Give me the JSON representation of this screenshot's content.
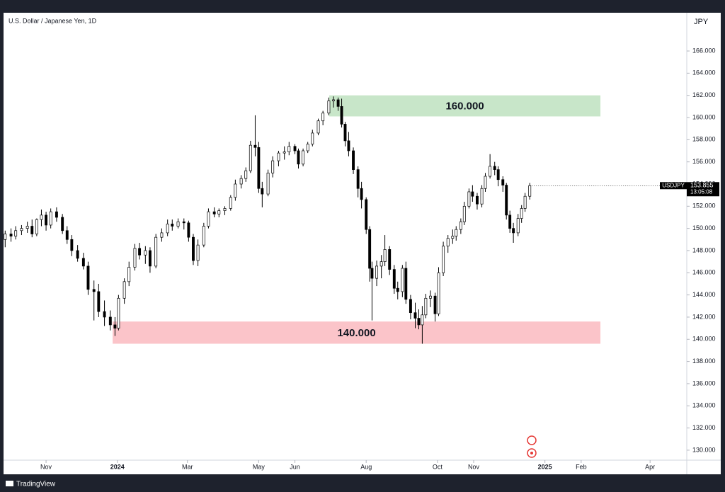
{
  "chart_data": {
    "type": "candlestick",
    "title": "U.S. Dollar / Japanese Yen, 1D",
    "currency": "JPY",
    "symbol": "USDJPY",
    "last_price": 153.855,
    "countdown": "13:05:08",
    "brand": "TradingView",
    "xlim": [
      -36.4,
      548.4
    ],
    "ylim": [
      129.1,
      169.45
    ],
    "xticks": [
      {
        "value": 0,
        "label": "Nov"
      },
      {
        "value": 61,
        "label": "2024"
      },
      {
        "value": 121,
        "label": "Mar"
      },
      {
        "value": 182,
        "label": "May"
      },
      {
        "value": 213,
        "label": "Jun"
      },
      {
        "value": 274,
        "label": "Aug"
      },
      {
        "value": 335,
        "label": "Oct"
      },
      {
        "value": 366,
        "label": "Nov"
      },
      {
        "value": 427,
        "label": "2025"
      },
      {
        "value": 458,
        "label": "Feb"
      },
      {
        "value": 517,
        "label": "Apr"
      }
    ],
    "yticks": [
      {
        "value": 130,
        "label": "130.000"
      },
      {
        "value": 132,
        "label": "132.000"
      },
      {
        "value": 134,
        "label": "134.000"
      },
      {
        "value": 136,
        "label": "136.000"
      },
      {
        "value": 138,
        "label": "138.000"
      },
      {
        "value": 140,
        "label": "140.000"
      },
      {
        "value": 142,
        "label": "142.000"
      },
      {
        "value": 144,
        "label": "144.000"
      },
      {
        "value": 146,
        "label": "146.000"
      },
      {
        "value": 148,
        "label": "148.000"
      },
      {
        "value": 150,
        "label": "150.000"
      },
      {
        "value": 152,
        "label": "152.000"
      },
      {
        "value": 154,
        "label": "154.000"
      },
      {
        "value": 156,
        "label": "156.000"
      },
      {
        "value": 158,
        "label": "158.000"
      },
      {
        "value": 160,
        "label": "160.000"
      },
      {
        "value": 162,
        "label": "162.000"
      },
      {
        "value": 164,
        "label": "164.000"
      },
      {
        "value": 166,
        "label": "166.000"
      }
    ],
    "up_color": "#ffffff",
    "down_color": "#000000",
    "zones": [
      {
        "label": "160.000",
        "low": 160.1,
        "high": 162.0,
        "x": [
          242.4,
          474.5
        ],
        "color": "#c8e6c9"
      },
      {
        "label": "140.000",
        "low": 139.6,
        "high": 141.6,
        "x": [
          57,
          474.5
        ],
        "color": "#fbc4c9"
      }
    ],
    "x": [
      -35,
      -30,
      -26,
      -21,
      -16,
      -12,
      -8,
      -4,
      0,
      4,
      9,
      14,
      18,
      22,
      27,
      32,
      36,
      41,
      45,
      50,
      55,
      59,
      62,
      67,
      71,
      76,
      80,
      85,
      89,
      94,
      99,
      104,
      108,
      113,
      118,
      122,
      126,
      130,
      135,
      139,
      144,
      148,
      153,
      158,
      162,
      167,
      171,
      175,
      179,
      182,
      185,
      190,
      194,
      199,
      204,
      208,
      213,
      216,
      220,
      224,
      228,
      233,
      237,
      242,
      246,
      250,
      253,
      256,
      259,
      263,
      267,
      270,
      274,
      277,
      279,
      283,
      287,
      290,
      294,
      298,
      301,
      305,
      308,
      312,
      316,
      319,
      322,
      325,
      329,
      333,
      336,
      340,
      344,
      348,
      351,
      355,
      358,
      362,
      365,
      369,
      373,
      376,
      380,
      384,
      387,
      391,
      394,
      397,
      400,
      404,
      407,
      410,
      414
    ],
    "open": [
      149.0,
      149.5,
      149.3,
      149.8,
      150.0,
      150.2,
      149.5,
      150.8,
      151.2,
      150.3,
      151.5,
      151.0,
      149.8,
      149.0,
      148.0,
      147.3,
      146.6,
      144.5,
      144.3,
      142.5,
      142.0,
      141.3,
      141.0,
      143.7,
      145.2,
      146.5,
      148.2,
      147.6,
      148.0,
      146.6,
      149.2,
      149.6,
      150.4,
      150.2,
      150.6,
      150.5,
      149.2,
      147.1,
      148.5,
      150.2,
      151.5,
      151.3,
      151.6,
      151.8,
      152.8,
      154.0,
      154.5,
      155.2,
      157.5,
      157.3,
      153.6,
      153.1,
      155.0,
      156.1,
      156.8,
      156.9,
      157.4,
      157.0,
      155.8,
      157.0,
      157.6,
      158.6,
      159.7,
      160.4,
      161.5,
      161.6,
      161.0,
      159.4,
      157.9,
      157.0,
      155.3,
      153.6,
      152.6,
      149.9,
      146.4,
      145.5,
      146.6,
      147.0,
      148.1,
      146.3,
      144.6,
      144.3,
      146.4,
      143.6,
      142.4,
      141.9,
      141.3,
      142.2,
      143.7,
      143.9,
      142.3,
      146.0,
      148.4,
      149.1,
      149.3,
      149.9,
      150.6,
      152.0,
      153.3,
      152.9,
      152.2,
      153.6,
      154.7,
      155.6,
      155.3,
      154.4,
      153.9,
      151.2,
      150.0,
      149.6,
      150.9,
      151.8,
      152.9
    ],
    "high": [
      149.8,
      150.0,
      150.2,
      150.3,
      150.6,
      150.8,
      150.9,
      151.7,
      151.5,
      151.8,
      151.9,
      151.3,
      150.2,
      149.4,
      148.5,
      147.8,
      147.0,
      145.3,
      145.0,
      143.5,
      142.6,
      142.0,
      144.0,
      145.5,
      147.0,
      148.6,
      148.7,
      148.4,
      148.3,
      149.5,
      150.0,
      150.8,
      150.8,
      150.9,
      150.9,
      150.7,
      149.5,
      149.0,
      150.5,
      151.8,
      151.9,
      151.8,
      152.0,
      153.0,
      154.4,
      154.8,
      155.5,
      157.9,
      160.2,
      157.8,
      154.2,
      155.3,
      156.5,
      157.0,
      157.4,
      157.8,
      157.6,
      157.2,
      157.2,
      157.8,
      158.9,
      159.9,
      160.6,
      161.8,
      161.9,
      161.8,
      161.7,
      159.6,
      158.7,
      157.3,
      155.6,
      154.2,
      152.8,
      150.2,
      147.0,
      147.1,
      147.6,
      149.4,
      148.4,
      146.7,
      145.2,
      146.7,
      147.0,
      144.0,
      143.3,
      142.7,
      143.0,
      144.1,
      144.4,
      144.2,
      146.5,
      148.8,
      149.4,
      149.9,
      150.2,
      150.9,
      152.4,
      153.6,
      153.9,
      153.2,
      153.9,
      155.0,
      156.7,
      156.0,
      155.6,
      154.7,
      154.1,
      151.6,
      150.5,
      151.3,
      152.1,
      153.2,
      154.1
    ],
    "low": [
      148.3,
      148.8,
      149.0,
      149.4,
      149.6,
      149.2,
      149.3,
      150.2,
      149.8,
      150.0,
      150.6,
      149.5,
      148.6,
      147.5,
      147.0,
      146.3,
      144.0,
      141.7,
      142.0,
      141.2,
      140.8,
      140.3,
      140.8,
      143.2,
      144.8,
      146.2,
      147.2,
      146.8,
      146.0,
      146.4,
      148.8,
      149.3,
      149.8,
      150.0,
      149.9,
      148.8,
      146.7,
      146.6,
      148.3,
      150.0,
      151.0,
      151.0,
      151.2,
      151.6,
      152.5,
      153.6,
      154.2,
      155.0,
      156.5,
      153.2,
      151.9,
      152.9,
      154.6,
      155.6,
      156.2,
      156.6,
      156.7,
      155.4,
      155.6,
      156.8,
      157.4,
      158.4,
      159.3,
      160.2,
      160.9,
      160.6,
      159.1,
      157.4,
      156.5,
      154.9,
      152.8,
      151.8,
      149.5,
      145.2,
      141.7,
      144.8,
      145.5,
      146.6,
      145.8,
      144.1,
      143.6,
      143.8,
      143.2,
      141.8,
      141.0,
      140.9,
      139.6,
      141.9,
      142.9,
      141.6,
      142.1,
      145.7,
      147.8,
      148.6,
      148.9,
      149.5,
      150.3,
      151.8,
      152.4,
      151.7,
      151.9,
      153.3,
      154.5,
      154.8,
      153.8,
      153.3,
      150.8,
      149.6,
      148.7,
      149.3,
      150.5,
      151.5,
      152.6
    ],
    "close": [
      149.5,
      149.3,
      149.8,
      150.0,
      150.2,
      149.5,
      150.8,
      151.2,
      150.3,
      151.5,
      151.0,
      149.8,
      149.0,
      148.0,
      147.3,
      146.6,
      144.5,
      144.3,
      142.5,
      142.0,
      141.3,
      141.0,
      143.7,
      145.2,
      146.5,
      148.2,
      147.6,
      148.0,
      146.6,
      149.2,
      149.6,
      150.4,
      150.2,
      150.6,
      150.5,
      149.2,
      147.1,
      148.5,
      150.2,
      151.5,
      151.3,
      151.6,
      151.8,
      152.8,
      154.0,
      154.5,
      155.2,
      157.5,
      157.3,
      153.6,
      153.1,
      155.0,
      156.1,
      156.8,
      156.9,
      157.4,
      157.0,
      155.8,
      157.0,
      157.6,
      158.6,
      159.7,
      160.4,
      161.5,
      161.6,
      161.0,
      159.4,
      157.9,
      157.0,
      155.3,
      153.6,
      152.6,
      149.9,
      146.4,
      145.5,
      146.6,
      147.0,
      148.1,
      146.3,
      144.6,
      144.3,
      146.4,
      143.6,
      142.4,
      141.9,
      141.3,
      142.2,
      143.7,
      143.9,
      142.3,
      146.0,
      148.4,
      149.1,
      149.3,
      149.9,
      150.6,
      152.0,
      153.3,
      152.9,
      152.2,
      153.6,
      154.7,
      155.6,
      155.3,
      154.4,
      153.9,
      151.2,
      150.0,
      149.6,
      150.9,
      151.8,
      152.9,
      153.855
    ]
  }
}
